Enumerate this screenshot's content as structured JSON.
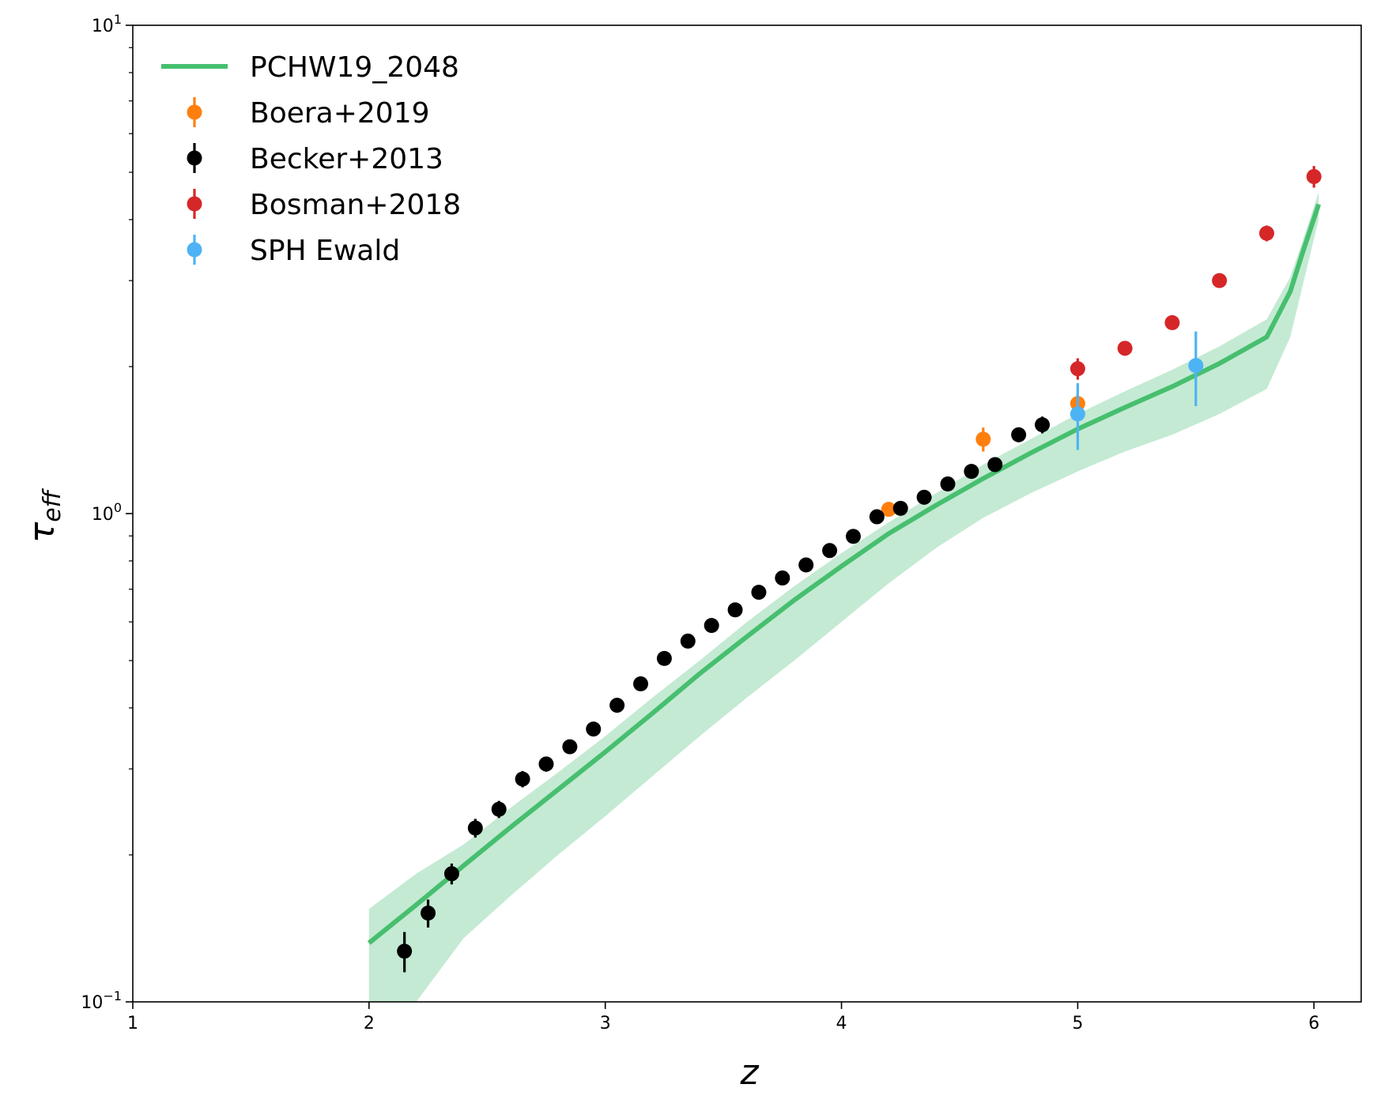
{
  "chart_data": {
    "type": "line",
    "title": "",
    "xlabel": "z",
    "ylabel": "τ",
    "ylabel_sub": "eff",
    "xlim": [
      1,
      6.2
    ],
    "ylim": [
      0.1,
      10
    ],
    "yscale": "log",
    "grid": false,
    "legend_position": "top-left",
    "x_ticks": [
      1,
      2,
      3,
      4,
      5,
      6
    ],
    "x_tick_labels": [
      "1",
      "2",
      "3",
      "4",
      "5",
      "6"
    ],
    "y_ticks": [
      0.1,
      1,
      10
    ],
    "y_tick_labels": [
      {
        "base": "10",
        "exp": "−1"
      },
      {
        "base": "10",
        "exp": "0"
      },
      {
        "base": "10",
        "exp": "1"
      }
    ],
    "model": {
      "name": "PCHW19_2048",
      "color": "#47bf6f",
      "band_color": "#c4ead3",
      "x": [
        2.0,
        2.2,
        2.4,
        2.6,
        2.8,
        3.0,
        3.2,
        3.4,
        3.6,
        3.8,
        4.0,
        4.2,
        4.4,
        4.6,
        4.8,
        5.0,
        5.2,
        5.4,
        5.6,
        5.8,
        5.9,
        5.95,
        6.02
      ],
      "y": [
        0.132,
        0.158,
        0.19,
        0.228,
        0.272,
        0.325,
        0.39,
        0.47,
        0.56,
        0.665,
        0.78,
        0.91,
        1.04,
        1.18,
        1.33,
        1.49,
        1.65,
        1.82,
        2.03,
        2.3,
        2.85,
        3.4,
        4.3
      ],
      "y_low": [
        0.075,
        0.1,
        0.135,
        0.165,
        0.2,
        0.24,
        0.29,
        0.35,
        0.42,
        0.5,
        0.6,
        0.72,
        0.85,
        0.98,
        1.1,
        1.22,
        1.34,
        1.45,
        1.6,
        1.8,
        2.3,
        2.9,
        4.0
      ],
      "y_high": [
        0.155,
        0.183,
        0.21,
        0.25,
        0.295,
        0.35,
        0.42,
        0.5,
        0.6,
        0.71,
        0.83,
        0.96,
        1.1,
        1.26,
        1.42,
        1.6,
        1.78,
        1.97,
        2.2,
        2.5,
        3.05,
        3.6,
        4.55
      ]
    },
    "series": [
      {
        "name": "Boera+2019",
        "color": "#ff7f0e",
        "x": [
          4.2,
          4.6,
          5.0
        ],
        "y": [
          1.02,
          1.42,
          1.68
        ],
        "err": [
          0.03,
          0.08,
          0.09
        ]
      },
      {
        "name": "Becker+2013",
        "color": "#000000",
        "x": [
          2.15,
          2.25,
          2.35,
          2.45,
          2.55,
          2.65,
          2.75,
          2.85,
          2.95,
          3.05,
          3.15,
          3.25,
          3.35,
          3.45,
          3.55,
          3.65,
          3.75,
          3.85,
          3.95,
          4.05,
          4.15,
          4.25,
          4.35,
          4.45,
          4.55,
          4.65,
          4.75,
          4.85
        ],
        "y": [
          0.127,
          0.152,
          0.183,
          0.227,
          0.248,
          0.286,
          0.307,
          0.333,
          0.362,
          0.405,
          0.448,
          0.505,
          0.548,
          0.59,
          0.635,
          0.69,
          0.738,
          0.785,
          0.84,
          0.898,
          0.985,
          1.025,
          1.08,
          1.15,
          1.22,
          1.26,
          1.45,
          1.52
        ],
        "err": [
          0.012,
          0.01,
          0.009,
          0.01,
          0.01,
          0.011,
          0.011,
          0.011,
          0.01,
          0.01,
          0.01,
          0.011,
          0.012,
          0.012,
          0.012,
          0.012,
          0.013,
          0.014,
          0.014,
          0.015,
          0.016,
          0.018,
          0.018,
          0.02,
          0.02,
          0.02,
          0.05,
          0.06
        ]
      },
      {
        "name": "Bosman+2018",
        "color": "#d62728",
        "x": [
          5.0,
          5.2,
          5.4,
          5.6,
          5.8,
          6.0
        ],
        "y": [
          1.98,
          2.18,
          2.46,
          3.0,
          3.75,
          4.9
        ],
        "err": [
          0.1,
          0.06,
          0.07,
          0.08,
          0.14,
          0.25
        ]
      },
      {
        "name": "SPH Ewald",
        "color": "#4db3f5",
        "x": [
          5.0,
          5.5
        ],
        "y": [
          1.6,
          2.01
        ],
        "err": [
          0.25,
          0.35
        ]
      }
    ]
  }
}
